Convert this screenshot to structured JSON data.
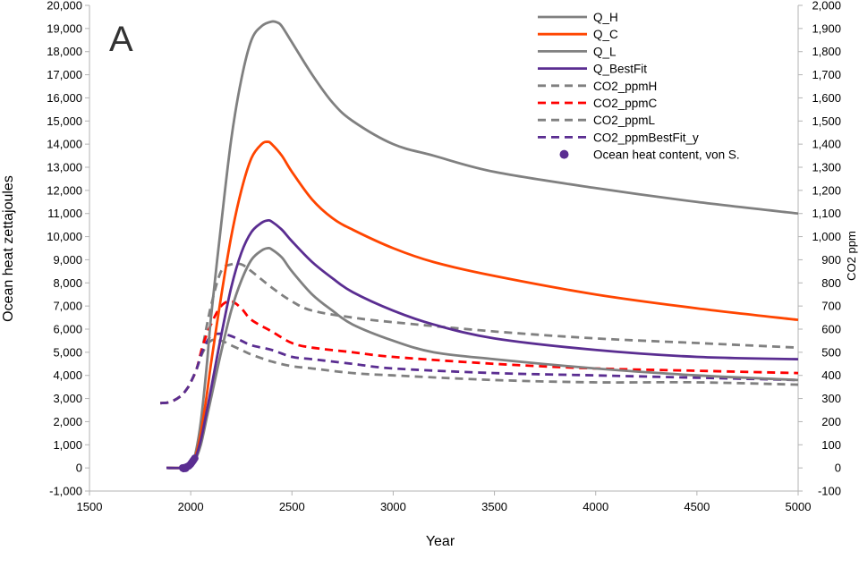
{
  "chart_data": {
    "type": "line",
    "panel_label": "A",
    "xlabel": "Year",
    "ylabel": "Ocean heat zettajoules",
    "y2label": "CO2 ppm",
    "xlim": [
      1500,
      5000
    ],
    "ylim": [
      -1000,
      20000
    ],
    "y2lim": [
      -100,
      2000
    ],
    "x_ticks": [
      "1500",
      "2000",
      "2500",
      "3000",
      "3500",
      "4000",
      "4500",
      "5000"
    ],
    "y_ticks": [
      "-1,000",
      "0",
      "1,000",
      "2,000",
      "3,000",
      "4,000",
      "5,000",
      "6,000",
      "7,000",
      "8,000",
      "9,000",
      "10,000",
      "11,000",
      "12,000",
      "13,000",
      "14,000",
      "15,000",
      "16,000",
      "17,000",
      "18,000",
      "19,000",
      "20,000"
    ],
    "y2_ticks": [
      "-100",
      "0",
      "100",
      "200",
      "300",
      "400",
      "500",
      "600",
      "700",
      "800",
      "900",
      "1,000",
      "1,100",
      "1,200",
      "1,300",
      "1,400",
      "1,500",
      "1,600",
      "1,700",
      "1,800",
      "1,900",
      "2,000"
    ],
    "grid": false,
    "legend_position": "top-right",
    "series": [
      {
        "name": "Q_H",
        "axis": "left",
        "style": "solid",
        "color": "#808080",
        "x": [
          1880,
          1950,
          1980,
          2000,
          2020,
          2050,
          2080,
          2100,
          2150,
          2200,
          2250,
          2300,
          2350,
          2400,
          2430,
          2450,
          2500,
          2600,
          2700,
          2800,
          3000,
          3200,
          3500,
          4000,
          4500,
          5000
        ],
        "y": [
          0,
          0,
          50,
          200,
          500,
          2000,
          4500,
          6500,
          10500,
          14200,
          16800,
          18500,
          19100,
          19300,
          19250,
          19100,
          18400,
          17000,
          15800,
          15000,
          14000,
          13500,
          12800,
          12100,
          11500,
          11000
        ]
      },
      {
        "name": "Q_C",
        "axis": "left",
        "style": "solid",
        "color": "#ff4500",
        "x": [
          1880,
          1950,
          1980,
          2000,
          2020,
          2050,
          2080,
          2100,
          2150,
          2200,
          2250,
          2300,
          2350,
          2380,
          2400,
          2450,
          2500,
          2600,
          2700,
          2800,
          3000,
          3200,
          3500,
          4000,
          4500,
          5000
        ],
        "y": [
          0,
          0,
          50,
          200,
          400,
          1500,
          3200,
          4500,
          7400,
          10000,
          12000,
          13400,
          14000,
          14100,
          14000,
          13500,
          12800,
          11600,
          10800,
          10300,
          9500,
          8900,
          8300,
          7500,
          6900,
          6400
        ]
      },
      {
        "name": "Q_L",
        "axis": "left",
        "style": "solid",
        "color": "#808080",
        "x": [
          1880,
          1950,
          1980,
          2000,
          2020,
          2050,
          2080,
          2100,
          2150,
          2200,
          2250,
          2300,
          2350,
          2380,
          2400,
          2450,
          2500,
          2600,
          2700,
          2800,
          3000,
          3200,
          3500,
          4000,
          4500,
          5000
        ],
        "y": [
          0,
          0,
          50,
          150,
          300,
          1000,
          2200,
          3000,
          5000,
          6800,
          8100,
          9000,
          9400,
          9500,
          9450,
          9100,
          8500,
          7500,
          6800,
          6200,
          5500,
          5000,
          4700,
          4300,
          4000,
          3800
        ]
      },
      {
        "name": "Q_BestFit",
        "axis": "left",
        "style": "solid",
        "color": "#5a2d91",
        "x": [
          1880,
          1950,
          1980,
          2000,
          2020,
          2050,
          2080,
          2100,
          2150,
          2200,
          2250,
          2300,
          2350,
          2380,
          2400,
          2450,
          2500,
          2600,
          2700,
          2800,
          3000,
          3200,
          3500,
          4000,
          4500,
          5000
        ],
        "y": [
          0,
          0,
          50,
          150,
          350,
          1200,
          2500,
          3400,
          5700,
          7800,
          9300,
          10200,
          10600,
          10700,
          10650,
          10300,
          9800,
          8900,
          8200,
          7600,
          6800,
          6200,
          5600,
          5100,
          4800,
          4700
        ]
      },
      {
        "name": "CO2_ppmH",
        "axis": "right",
        "style": "dashed",
        "color": "#808080",
        "x": [
          1850,
          1900,
          1950,
          1980,
          2000,
          2030,
          2060,
          2100,
          2150,
          2200,
          2250,
          2300,
          2400,
          2500,
          2600,
          2800,
          3000,
          3500,
          4000,
          4500,
          5000
        ],
        "y": [
          280,
          285,
          310,
          340,
          370,
          430,
          530,
          700,
          850,
          880,
          880,
          850,
          780,
          720,
          680,
          650,
          630,
          590,
          560,
          540,
          520
        ]
      },
      {
        "name": "CO2_ppmC",
        "axis": "right",
        "style": "dashed",
        "color": "#ff0000",
        "x": [
          1850,
          1900,
          1950,
          1980,
          2000,
          2030,
          2060,
          2100,
          2150,
          2200,
          2250,
          2300,
          2400,
          2500,
          2600,
          2800,
          3000,
          3500,
          4000,
          4500,
          5000
        ],
        "y": [
          280,
          285,
          310,
          340,
          370,
          430,
          530,
          620,
          700,
          720,
          690,
          640,
          590,
          540,
          520,
          500,
          480,
          450,
          430,
          420,
          410
        ]
      },
      {
        "name": "CO2_ppmL",
        "axis": "right",
        "style": "dashed",
        "color": "#808080",
        "x": [
          1850,
          1900,
          1950,
          1980,
          2000,
          2030,
          2060,
          2100,
          2150,
          2200,
          2250,
          2300,
          2400,
          2500,
          2600,
          2800,
          3000,
          3500,
          4000,
          4500,
          5000
        ],
        "y": [
          280,
          285,
          310,
          340,
          370,
          430,
          500,
          550,
          550,
          530,
          510,
          490,
          460,
          440,
          430,
          410,
          400,
          380,
          370,
          370,
          360
        ]
      },
      {
        "name": "CO2_ppmBestFit_y",
        "axis": "right",
        "style": "dashed",
        "color": "#5a2d91",
        "x": [
          1850,
          1900,
          1950,
          1980,
          2000,
          2030,
          2060,
          2100,
          2150,
          2200,
          2250,
          2300,
          2400,
          2500,
          2600,
          2800,
          3000,
          3500,
          4000,
          4500,
          5000
        ],
        "y": [
          280,
          285,
          310,
          340,
          370,
          430,
          510,
          570,
          580,
          570,
          550,
          530,
          510,
          480,
          470,
          450,
          430,
          410,
          400,
          390,
          380
        ]
      }
    ],
    "scatter": {
      "name": "Ocean heat content, von S.",
      "axis": "left",
      "color": "#5a2d91",
      "x": [
        1960,
        1965,
        1970,
        1975,
        1980,
        1985,
        1990,
        1995,
        2000,
        2005,
        2010,
        2015,
        2020
      ],
      "y": [
        0,
        -30,
        10,
        -20,
        40,
        60,
        80,
        120,
        170,
        230,
        290,
        350,
        420
      ]
    }
  }
}
